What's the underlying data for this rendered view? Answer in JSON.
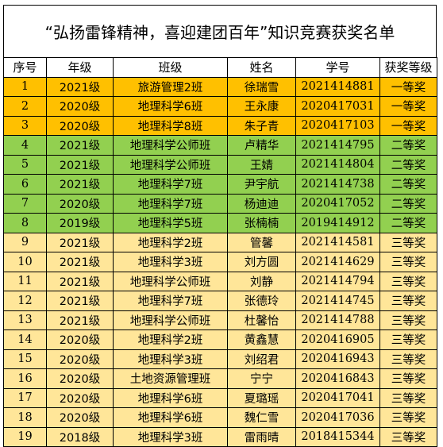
{
  "title": "“弘扬雷锋精神，喜迎建团百年”知识竞赛获奖名单",
  "columns": [
    "序号",
    "年级",
    "班级",
    "姓名",
    "学号",
    "获奖等级"
  ],
  "tier_colors": {
    "一等奖": "#ffc000",
    "二等奖": "#92d050",
    "三等奖": "#ffe699"
  },
  "rows": [
    {
      "no": "1",
      "grade": "2021级",
      "class": "旅游管理2班",
      "name": "徐瑞雪",
      "id": "2021414881",
      "award": "一等奖",
      "tier": 1
    },
    {
      "no": "2",
      "grade": "2020级",
      "class": "地理科学6班",
      "name": "王永康",
      "id": "2020417031",
      "award": "一等奖",
      "tier": 1
    },
    {
      "no": "3",
      "grade": "2020级",
      "class": "地理科学8班",
      "name": "朱子青",
      "id": "2020417103",
      "award": "一等奖",
      "tier": 1
    },
    {
      "no": "4",
      "grade": "2021级",
      "class": "地理科学公师班",
      "name": "卢精华",
      "id": "2021414795",
      "award": "二等奖",
      "tier": 2
    },
    {
      "no": "5",
      "grade": "2021级",
      "class": "地理科学公师班",
      "name": "王婧",
      "id": "2021414804",
      "award": "二等奖",
      "tier": 2
    },
    {
      "no": "6",
      "grade": "2021级",
      "class": "地理科学7班",
      "name": "尹宇航",
      "id": "2021414738",
      "award": "二等奖",
      "tier": 2
    },
    {
      "no": "7",
      "grade": "2020级",
      "class": "地理科学7班",
      "name": "杨迪迪",
      "id": "2020417052",
      "award": "二等奖",
      "tier": 2
    },
    {
      "no": "8",
      "grade": "2019级",
      "class": "地理科学5班",
      "name": "张楠楠",
      "id": "2019414912",
      "award": "二等奖",
      "tier": 2
    },
    {
      "no": "9",
      "grade": "2021级",
      "class": "地理科学2班",
      "name": "管馨",
      "id": "2021414581",
      "award": "三等奖",
      "tier": 3
    },
    {
      "no": "10",
      "grade": "2021级",
      "class": "地理科学3班",
      "name": "刘方圆",
      "id": "2021414629",
      "award": "三等奖",
      "tier": 3
    },
    {
      "no": "11",
      "grade": "2021级",
      "class": "地理科学公师班",
      "name": "刘静",
      "id": "2021414794",
      "award": "三等奖",
      "tier": 3
    },
    {
      "no": "12",
      "grade": "2021级",
      "class": "地理科学7班",
      "name": "张德玲",
      "id": "2021414745",
      "award": "三等奖",
      "tier": 3
    },
    {
      "no": "13",
      "grade": "2021级",
      "class": "地理科学公师班",
      "name": "杜馨怡",
      "id": "2021414788",
      "award": "三等奖",
      "tier": 3
    },
    {
      "no": "14",
      "grade": "2020级",
      "class": "地理科学2班",
      "name": "黄鑫慧",
      "id": "2020416905",
      "award": "三等奖",
      "tier": 3
    },
    {
      "no": "15",
      "grade": "2020级",
      "class": "地理科学3班",
      "name": "刘绍君",
      "id": "2020416943",
      "award": "三等奖",
      "tier": 3
    },
    {
      "no": "16",
      "grade": "2020级",
      "class": "土地资源管理班",
      "name": "宁宁",
      "id": "2020416843",
      "award": "三等奖",
      "tier": 3
    },
    {
      "no": "17",
      "grade": "2020级",
      "class": "地理科学6班",
      "name": "夏璐瑶",
      "id": "2020417041",
      "award": "三等奖",
      "tier": 3
    },
    {
      "no": "18",
      "grade": "2020级",
      "class": "地理科学6班",
      "name": "魏仁雪",
      "id": "2020417036",
      "award": "三等奖",
      "tier": 3
    },
    {
      "no": "19",
      "grade": "2018级",
      "class": "地理科学3班",
      "name": "雷雨晴",
      "id": "2018415344",
      "award": "三等奖",
      "tier": 3
    }
  ]
}
